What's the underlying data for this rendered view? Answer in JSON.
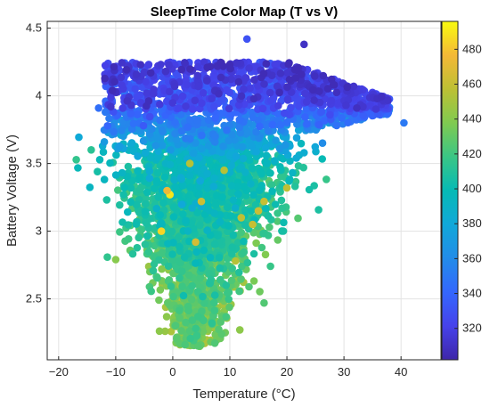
{
  "chart_data": {
    "type": "scatter",
    "title": "SleepTime Color Map (T vs V)",
    "xlabel": "Temperature (°C)",
    "ylabel": "Battery Voltage (V)",
    "xlim": [
      -22,
      47
    ],
    "ylim": [
      2.05,
      4.55
    ],
    "x_ticks": [
      -20,
      -10,
      0,
      10,
      20,
      30,
      40
    ],
    "x_tick_labels": [
      "−20",
      "−10",
      "0",
      "10",
      "20",
      "30",
      "40"
    ],
    "y_ticks": [
      2.5,
      3,
      3.5,
      4,
      4.5
    ],
    "y_tick_labels": [
      "2.5",
      "3",
      "3.5",
      "4",
      "4.5"
    ],
    "grid": true,
    "colorbar": {
      "colormap": "parula",
      "range": [
        302,
        496
      ],
      "ticks": [
        320,
        340,
        360,
        380,
        400,
        420,
        440,
        460,
        480
      ],
      "tick_labels": [
        "320",
        "340",
        "360",
        "380",
        "400",
        "420",
        "440",
        "460",
        "480"
      ]
    },
    "point_clusters": [
      {
        "region": "upper band",
        "x_range": [
          -13,
          40
        ],
        "y_range": [
          3.75,
          4.42
        ],
        "sleeptime_range": [
          310,
          360
        ]
      },
      {
        "region": "central mass",
        "x_range": [
          -10,
          22
        ],
        "y_range": [
          2.8,
          3.75
        ],
        "sleeptime_range": [
          380,
          450
        ]
      },
      {
        "region": "lower tail",
        "x_range": [
          -4,
          15
        ],
        "y_range": [
          2.15,
          2.8
        ],
        "sleeptime_range": [
          420,
          450
        ]
      }
    ],
    "highlight_points": [
      {
        "x": -0.5,
        "y": 3.27,
        "sleeptime": 490
      },
      {
        "x": -2,
        "y": 3.0,
        "sleeptime": 485
      },
      {
        "x": 4,
        "y": 2.92,
        "sleeptime": 465
      },
      {
        "x": 15,
        "y": 3.15,
        "sleeptime": 462
      },
      {
        "x": 16,
        "y": 3.22,
        "sleeptime": 460
      },
      {
        "x": 12,
        "y": 3.1,
        "sleeptime": 458
      },
      {
        "x": 5,
        "y": 3.22,
        "sleeptime": 462
      },
      {
        "x": 3,
        "y": 3.5,
        "sleeptime": 455
      },
      {
        "x": 9,
        "y": 3.45,
        "sleeptime": 455
      },
      {
        "x": 11,
        "y": 2.78,
        "sleeptime": 455
      },
      {
        "x": 20,
        "y": 3.32,
        "sleeptime": 458
      },
      {
        "x": 14,
        "y": 3.05,
        "sleeptime": 460
      },
      {
        "x": -1,
        "y": 3.3,
        "sleeptime": 475
      }
    ],
    "outlier_points": [
      {
        "x": 13,
        "y": 4.42,
        "sleeptime": 330
      },
      {
        "x": 23,
        "y": 4.38,
        "sleeptime": 310
      },
      {
        "x": 40.5,
        "y": 3.8,
        "sleeptime": 350
      },
      {
        "x": -13,
        "y": 3.91,
        "sleeptime": 345
      },
      {
        "x": -12,
        "y": 3.66,
        "sleeptime": 370
      },
      {
        "x": -10,
        "y": 2.79,
        "sleeptime": 440
      },
      {
        "x": 16,
        "y": 2.47,
        "sleeptime": 425
      }
    ]
  }
}
